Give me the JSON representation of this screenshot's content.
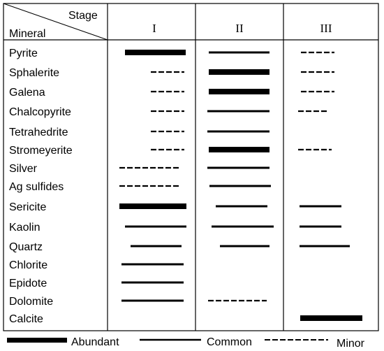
{
  "header": {
    "stage_label": "Stage",
    "mineral_label": "Mineral",
    "stages": [
      "I",
      "II",
      "III"
    ]
  },
  "minerals": [
    {
      "name": "Pyrite",
      "stages": [
        "abundant",
        "common",
        "minor"
      ]
    },
    {
      "name": "Sphalerite",
      "stages": [
        "minor",
        "abundant",
        "minor"
      ]
    },
    {
      "name": "Galena",
      "stages": [
        "minor",
        "abundant",
        "minor"
      ]
    },
    {
      "name": "Chalcopyrite",
      "stages": [
        "minor",
        "common",
        "minor"
      ]
    },
    {
      "name": "Tetrahedrite",
      "stages": [
        "minor",
        "common",
        null
      ]
    },
    {
      "name": "Stromeyerite",
      "stages": [
        "minor",
        "abundant",
        "minor"
      ]
    },
    {
      "name": "Silver",
      "stages": [
        "minor",
        "common",
        null
      ]
    },
    {
      "name": "Ag sulfides",
      "stages": [
        "minor",
        "common",
        null
      ]
    },
    {
      "name": "Sericite",
      "stages": [
        "abundant",
        "common",
        "common"
      ]
    },
    {
      "name": "Kaolin",
      "stages": [
        "common",
        "common",
        "common"
      ]
    },
    {
      "name": "Quartz",
      "stages": [
        "common",
        "common",
        "common"
      ]
    },
    {
      "name": "Chlorite",
      "stages": [
        "common",
        null,
        null
      ]
    },
    {
      "name": "Epidote",
      "stages": [
        "common",
        null,
        null
      ]
    },
    {
      "name": "Dolomite",
      "stages": [
        "common",
        "minor",
        null
      ]
    },
    {
      "name": "Calcite",
      "stages": [
        null,
        null,
        "abundant"
      ]
    }
  ],
  "legend": {
    "abundant": "Abundant",
    "common": "Common",
    "minor": "Minor"
  },
  "colors": {
    "ink": "#000000",
    "background": "#ffffff"
  }
}
